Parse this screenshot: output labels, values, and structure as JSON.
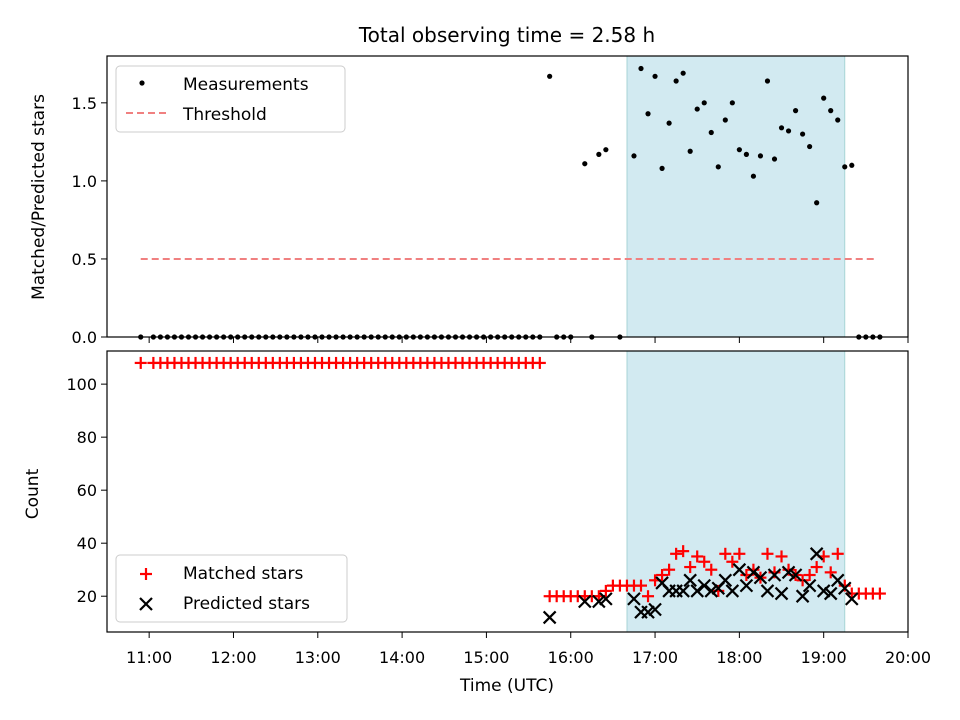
{
  "title": "Total observing time = 2.58 h",
  "chart_data": [
    {
      "type": "scatter",
      "title": "Total observing time = 2.58 h",
      "xlabel": "",
      "ylabel": "Matched/Predicted stars",
      "xlim": [
        "10:30",
        "20:00"
      ],
      "ylim": [
        0,
        1.8
      ],
      "yticks": [
        "0.0",
        "0.5",
        "1.0",
        "1.5"
      ],
      "shaded_span": [
        "16:40",
        "19:15"
      ],
      "shaded_color": "#add8e6",
      "legend_position": "top-left",
      "series": [
        {
          "name": "Measurements",
          "marker": "dot",
          "color": "#000000",
          "points": [
            [
              "10:54",
              0
            ],
            [
              "11:03",
              0
            ],
            [
              "11:08",
              0
            ],
            [
              "11:13",
              0
            ],
            [
              "11:18",
              0
            ],
            [
              "11:23",
              0
            ],
            [
              "11:28",
              0
            ],
            [
              "11:33",
              0
            ],
            [
              "11:38",
              0
            ],
            [
              "11:43",
              0
            ],
            [
              "11:48",
              0
            ],
            [
              "11:53",
              0
            ],
            [
              "11:58",
              0
            ],
            [
              "12:03",
              0
            ],
            [
              "12:08",
              0
            ],
            [
              "12:13",
              0
            ],
            [
              "12:18",
              0
            ],
            [
              "12:23",
              0
            ],
            [
              "12:28",
              0
            ],
            [
              "12:33",
              0
            ],
            [
              "12:38",
              0
            ],
            [
              "12:43",
              0
            ],
            [
              "12:48",
              0
            ],
            [
              "12:53",
              0
            ],
            [
              "12:58",
              0
            ],
            [
              "13:03",
              0
            ],
            [
              "13:08",
              0
            ],
            [
              "13:13",
              0
            ],
            [
              "13:18",
              0
            ],
            [
              "13:23",
              0
            ],
            [
              "13:28",
              0
            ],
            [
              "13:33",
              0
            ],
            [
              "13:38",
              0
            ],
            [
              "13:43",
              0
            ],
            [
              "13:48",
              0
            ],
            [
              "13:53",
              0
            ],
            [
              "13:58",
              0
            ],
            [
              "14:03",
              0
            ],
            [
              "14:08",
              0
            ],
            [
              "14:13",
              0
            ],
            [
              "14:18",
              0
            ],
            [
              "14:23",
              0
            ],
            [
              "14:28",
              0
            ],
            [
              "14:33",
              0
            ],
            [
              "14:38",
              0
            ],
            [
              "14:43",
              0
            ],
            [
              "14:48",
              0
            ],
            [
              "14:53",
              0
            ],
            [
              "14:58",
              0
            ],
            [
              "15:03",
              0
            ],
            [
              "15:08",
              0
            ],
            [
              "15:13",
              0
            ],
            [
              "15:18",
              0
            ],
            [
              "15:23",
              0
            ],
            [
              "15:28",
              0
            ],
            [
              "15:33",
              0
            ],
            [
              "15:38",
              0
            ],
            [
              "15:45",
              1.67
            ],
            [
              "15:50",
              0
            ],
            [
              "15:55",
              0
            ],
            [
              "16:00",
              0
            ],
            [
              "16:10",
              1.11
            ],
            [
              "16:15",
              0
            ],
            [
              "16:20",
              1.17
            ],
            [
              "16:25",
              1.2
            ],
            [
              "16:35",
              0
            ],
            [
              "16:45",
              1.16
            ],
            [
              "16:50",
              1.72
            ],
            [
              "16:55",
              1.43
            ],
            [
              "17:00",
              1.67
            ],
            [
              "17:05",
              1.08
            ],
            [
              "17:10",
              1.37
            ],
            [
              "17:15",
              1.64
            ],
            [
              "17:20",
              1.69
            ],
            [
              "17:25",
              1.19
            ],
            [
              "17:30",
              1.46
            ],
            [
              "17:35",
              1.5
            ],
            [
              "17:40",
              1.31
            ],
            [
              "17:45",
              1.09
            ],
            [
              "17:50",
              1.39
            ],
            [
              "17:55",
              1.5
            ],
            [
              "18:00",
              1.2
            ],
            [
              "18:05",
              1.17
            ],
            [
              "18:10",
              1.03
            ],
            [
              "18:15",
              1.16
            ],
            [
              "18:20",
              1.64
            ],
            [
              "18:25",
              1.14
            ],
            [
              "18:30",
              1.34
            ],
            [
              "18:35",
              1.32
            ],
            [
              "18:40",
              1.45
            ],
            [
              "18:45",
              1.3
            ],
            [
              "18:50",
              1.22
            ],
            [
              "18:55",
              0.86
            ],
            [
              "19:00",
              1.53
            ],
            [
              "19:05",
              1.45
            ],
            [
              "19:10",
              1.39
            ],
            [
              "19:15",
              1.09
            ],
            [
              "19:20",
              1.1
            ],
            [
              "19:25",
              0
            ],
            [
              "19:30",
              0
            ],
            [
              "19:35",
              0
            ],
            [
              "19:40",
              0
            ]
          ]
        },
        {
          "name": "Threshold",
          "marker": "dashed-line",
          "color": "#f08080",
          "points": [
            [
              "10:54",
              0.5
            ],
            [
              "19:38",
              0.5
            ]
          ]
        }
      ]
    },
    {
      "type": "scatter",
      "xlabel": "Time (UTC)",
      "ylabel": "Count",
      "xlim": [
        "10:30",
        "20:00"
      ],
      "ylim": [
        6.5,
        112.5
      ],
      "yticks": [
        "20",
        "40",
        "60",
        "80",
        "100"
      ],
      "xticks": [
        "11:00",
        "12:00",
        "13:00",
        "14:00",
        "15:00",
        "16:00",
        "17:00",
        "18:00",
        "19:00",
        "20:00"
      ],
      "shaded_span": [
        "16:40",
        "19:15"
      ],
      "shaded_color": "#add8e6",
      "legend_position": "bottom-left",
      "series": [
        {
          "name": "Matched stars",
          "marker": "plus",
          "color": "#ff0000",
          "points": [
            [
              "10:54",
              108
            ],
            [
              "11:03",
              108
            ],
            [
              "11:08",
              108
            ],
            [
              "11:13",
              108
            ],
            [
              "11:18",
              108
            ],
            [
              "11:23",
              108
            ],
            [
              "11:28",
              108
            ],
            [
              "11:33",
              108
            ],
            [
              "11:38",
              108
            ],
            [
              "11:43",
              108
            ],
            [
              "11:48",
              108
            ],
            [
              "11:53",
              108
            ],
            [
              "11:58",
              108
            ],
            [
              "12:03",
              108
            ],
            [
              "12:08",
              108
            ],
            [
              "12:13",
              108
            ],
            [
              "12:18",
              108
            ],
            [
              "12:23",
              108
            ],
            [
              "12:28",
              108
            ],
            [
              "12:33",
              108
            ],
            [
              "12:38",
              108
            ],
            [
              "12:43",
              108
            ],
            [
              "12:48",
              108
            ],
            [
              "12:53",
              108
            ],
            [
              "12:58",
              108
            ],
            [
              "13:03",
              108
            ],
            [
              "13:08",
              108
            ],
            [
              "13:13",
              108
            ],
            [
              "13:18",
              108
            ],
            [
              "13:23",
              108
            ],
            [
              "13:28",
              108
            ],
            [
              "13:33",
              108
            ],
            [
              "13:38",
              108
            ],
            [
              "13:43",
              108
            ],
            [
              "13:48",
              108
            ],
            [
              "13:53",
              108
            ],
            [
              "13:58",
              108
            ],
            [
              "14:03",
              108
            ],
            [
              "14:08",
              108
            ],
            [
              "14:13",
              108
            ],
            [
              "14:18",
              108
            ],
            [
              "14:23",
              108
            ],
            [
              "14:28",
              108
            ],
            [
              "14:33",
              108
            ],
            [
              "14:38",
              108
            ],
            [
              "14:43",
              108
            ],
            [
              "14:48",
              108
            ],
            [
              "14:53",
              108
            ],
            [
              "14:58",
              108
            ],
            [
              "15:03",
              108
            ],
            [
              "15:08",
              108
            ],
            [
              "15:13",
              108
            ],
            [
              "15:18",
              108
            ],
            [
              "15:23",
              108
            ],
            [
              "15:28",
              108
            ],
            [
              "15:33",
              108
            ],
            [
              "15:38",
              108
            ],
            [
              "15:45",
              20
            ],
            [
              "15:50",
              20
            ],
            [
              "15:55",
              20
            ],
            [
              "16:00",
              20
            ],
            [
              "16:05",
              20
            ],
            [
              "16:10",
              20
            ],
            [
              "16:15",
              20
            ],
            [
              "16:20",
              20
            ],
            [
              "16:25",
              22
            ],
            [
              "16:30",
              24
            ],
            [
              "16:35",
              24
            ],
            [
              "16:40",
              24
            ],
            [
              "16:45",
              24
            ],
            [
              "16:50",
              24
            ],
            [
              "16:55",
              20
            ],
            [
              "17:00",
              26
            ],
            [
              "17:05",
              28
            ],
            [
              "17:10",
              30
            ],
            [
              "17:15",
              36
            ],
            [
              "17:20",
              37
            ],
            [
              "17:25",
              31
            ],
            [
              "17:30",
              35
            ],
            [
              "17:35",
              33
            ],
            [
              "17:40",
              30
            ],
            [
              "17:45",
              22
            ],
            [
              "17:50",
              36
            ],
            [
              "17:55",
              33
            ],
            [
              "18:00",
              36
            ],
            [
              "18:05",
              28
            ],
            [
              "18:10",
              30
            ],
            [
              "18:15",
              27
            ],
            [
              "18:20",
              36
            ],
            [
              "18:25",
              29
            ],
            [
              "18:30",
              35
            ],
            [
              "18:35",
              30
            ],
            [
              "18:40",
              28
            ],
            [
              "18:45",
              26
            ],
            [
              "18:50",
              28
            ],
            [
              "18:55",
              31
            ],
            [
              "19:00",
              35
            ],
            [
              "19:05",
              29
            ],
            [
              "19:10",
              36
            ],
            [
              "19:15",
              24
            ],
            [
              "19:20",
              21
            ],
            [
              "19:25",
              21
            ],
            [
              "19:30",
              21
            ],
            [
              "19:35",
              21
            ],
            [
              "19:40",
              21
            ]
          ]
        },
        {
          "name": "Predicted stars",
          "marker": "x",
          "color": "#000000",
          "points": [
            [
              "15:45",
              12
            ],
            [
              "16:10",
              18
            ],
            [
              "16:20",
              18
            ],
            [
              "16:25",
              19
            ],
            [
              "16:45",
              19
            ],
            [
              "16:50",
              14
            ],
            [
              "16:55",
              14
            ],
            [
              "17:00",
              15
            ],
            [
              "17:05",
              25
            ],
            [
              "17:10",
              22
            ],
            [
              "17:15",
              22
            ],
            [
              "17:20",
              22
            ],
            [
              "17:25",
              26
            ],
            [
              "17:30",
              22
            ],
            [
              "17:35",
              24
            ],
            [
              "17:40",
              22
            ],
            [
              "17:45",
              23
            ],
            [
              "17:50",
              26
            ],
            [
              "17:55",
              22
            ],
            [
              "18:00",
              30
            ],
            [
              "18:05",
              24
            ],
            [
              "18:10",
              29
            ],
            [
              "18:15",
              27
            ],
            [
              "18:20",
              22
            ],
            [
              "18:25",
              28
            ],
            [
              "18:30",
              21
            ],
            [
              "18:35",
              29
            ],
            [
              "18:40",
              28
            ],
            [
              "18:45",
              20
            ],
            [
              "18:50",
              24
            ],
            [
              "18:55",
              36
            ],
            [
              "19:00",
              22
            ],
            [
              "19:05",
              21
            ],
            [
              "19:10",
              26
            ],
            [
              "19:15",
              23
            ],
            [
              "19:20",
              19
            ]
          ]
        }
      ]
    }
  ]
}
